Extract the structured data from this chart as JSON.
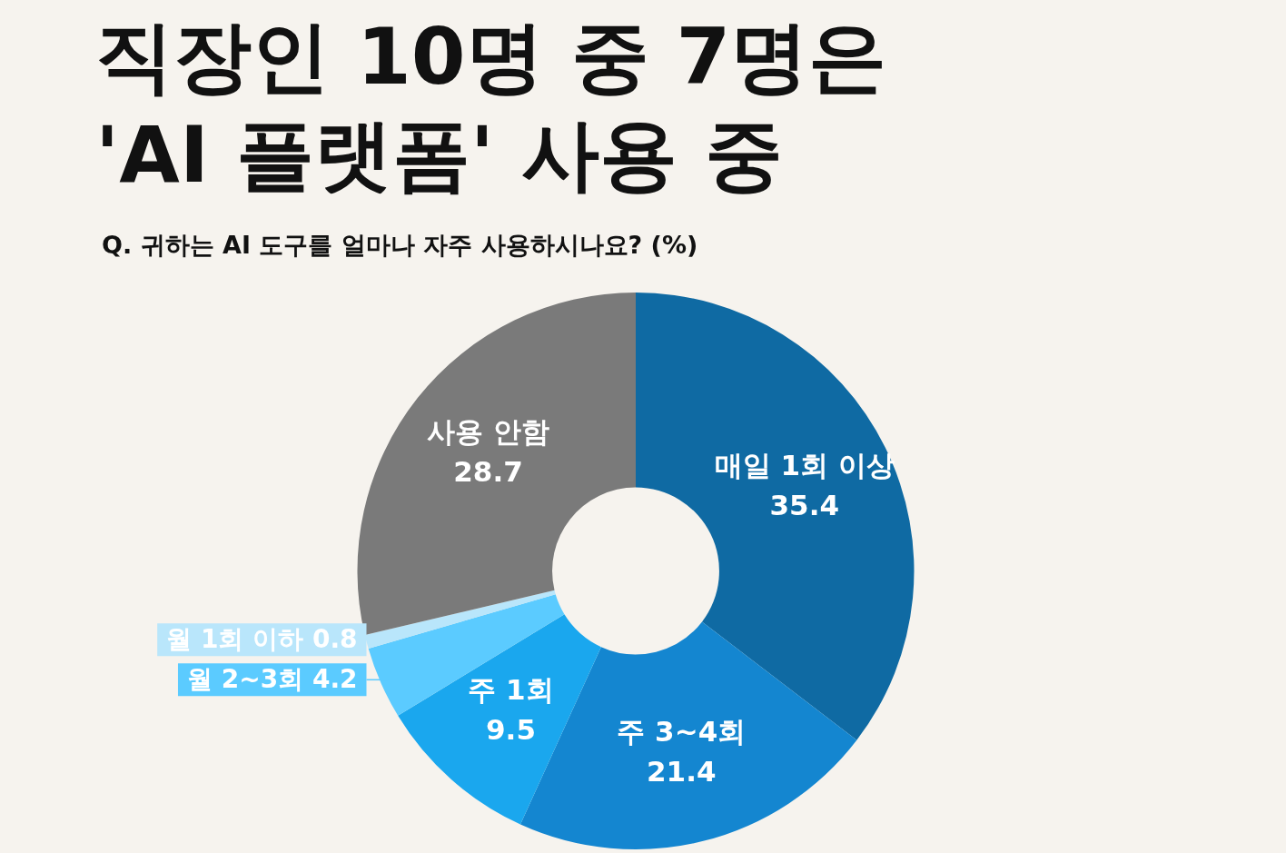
{
  "chart_data": {
    "type": "donut",
    "title": "직장인 10명 중 7명은 'AI 플랫폼' 사용 중",
    "subtitle": "Q. 귀하는 AI 도구를 얼마나 자주 사용하시나요? (%)",
    "categories": [
      "매일 1회 이상",
      "주 3~4회",
      "주 1회",
      "월 2~3회",
      "월 1회 이하",
      "사용 안함"
    ],
    "values": [
      35.4,
      21.4,
      9.5,
      4.2,
      0.8,
      28.7
    ],
    "colors": [
      "#0f6aa3",
      "#1486d0",
      "#1aa7ee",
      "#5bcbff",
      "#b9e6fb",
      "#7a7a7a"
    ],
    "data_labels": true
  }
}
